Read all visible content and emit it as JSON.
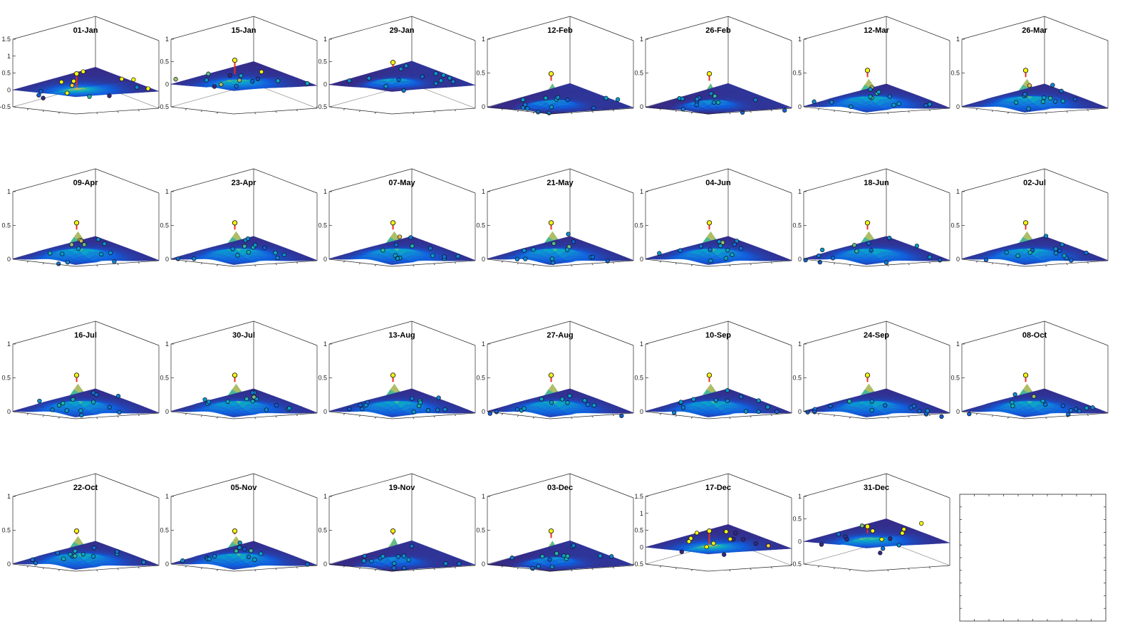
{
  "chart_data": {
    "type": "surface",
    "panels": [
      {
        "title": "01-Jan",
        "zlim": [
          -0.5,
          1.5
        ],
        "zticks": [
          "-0.5",
          "0",
          "0.5",
          "1",
          "1.5"
        ],
        "peak": 0.5,
        "amp": 0.1,
        "style": "dip"
      },
      {
        "title": "15-Jan",
        "zlim": [
          -0.5,
          1
        ],
        "zticks": [
          "-0.5",
          "0",
          "0.5",
          "1"
        ],
        "peak": 0.55,
        "amp": 0.25,
        "style": "dip"
      },
      {
        "title": "29-Jan",
        "zlim": [
          -0.5,
          1
        ],
        "zticks": [
          "-0.5",
          "0",
          "0.5",
          "1"
        ],
        "peak": 0.5,
        "amp": 0.4,
        "style": "spike"
      },
      {
        "title": "12-Feb",
        "zlim": [
          0,
          1
        ],
        "zticks": [
          "0",
          "0.5",
          "1"
        ],
        "peak": 0.5,
        "amp": 0.4,
        "style": "spike"
      },
      {
        "title": "26-Feb",
        "zlim": [
          0,
          1
        ],
        "zticks": [
          "0",
          "0.5",
          "1"
        ],
        "peak": 0.5,
        "amp": 0.4,
        "style": "spike"
      },
      {
        "title": "12-Mar",
        "zlim": [
          0,
          1
        ],
        "zticks": [
          "0",
          "0.5",
          "1"
        ],
        "peak": 0.55,
        "amp": 0.45,
        "style": "peak"
      },
      {
        "title": "26-Mar",
        "zlim": [
          0,
          1
        ],
        "zticks": [
          "0",
          "0.5",
          "1"
        ],
        "peak": 0.55,
        "amp": 0.45,
        "style": "peak"
      },
      {
        "title": "09-Apr",
        "zlim": [
          0,
          1
        ],
        "zticks": [
          "0",
          "0.5",
          "1"
        ],
        "peak": 0.55,
        "amp": 0.45,
        "style": "peak"
      },
      {
        "title": "23-Apr",
        "zlim": [
          0,
          1
        ],
        "zticks": [
          "0",
          "0.5",
          "1"
        ],
        "peak": 0.55,
        "amp": 0.45,
        "style": "peak"
      },
      {
        "title": "07-May",
        "zlim": [
          0,
          1
        ],
        "zticks": [
          "0",
          "0.5",
          "1"
        ],
        "peak": 0.55,
        "amp": 0.45,
        "style": "peak"
      },
      {
        "title": "21-May",
        "zlim": [
          0,
          1
        ],
        "zticks": [
          "0",
          "0.5",
          "1"
        ],
        "peak": 0.55,
        "amp": 0.45,
        "style": "peak"
      },
      {
        "title": "04-Jun",
        "zlim": [
          0,
          1
        ],
        "zticks": [
          "0",
          "0.5",
          "1"
        ],
        "peak": 0.55,
        "amp": 0.45,
        "style": "peak"
      },
      {
        "title": "18-Jun",
        "zlim": [
          0,
          1
        ],
        "zticks": [
          "0",
          "0.5",
          "1"
        ],
        "peak": 0.55,
        "amp": 0.45,
        "style": "peak"
      },
      {
        "title": "02-Jul",
        "zlim": [
          0,
          1
        ],
        "zticks": [
          "0",
          "0.5",
          "1"
        ],
        "peak": 0.55,
        "amp": 0.45,
        "style": "peak"
      },
      {
        "title": "16-Jul",
        "zlim": [
          0,
          1
        ],
        "zticks": [
          "0",
          "0.5",
          "1"
        ],
        "peak": 0.55,
        "amp": 0.45,
        "style": "peak"
      },
      {
        "title": "30-Jul",
        "zlim": [
          0,
          1
        ],
        "zticks": [
          "0",
          "0.5",
          "1"
        ],
        "peak": 0.55,
        "amp": 0.45,
        "style": "peak"
      },
      {
        "title": "13-Aug",
        "zlim": [
          0,
          1
        ],
        "zticks": [
          "0",
          "0.5",
          "1"
        ],
        "peak": 0.55,
        "amp": 0.45,
        "style": "peak"
      },
      {
        "title": "27-Aug",
        "zlim": [
          0,
          1
        ],
        "zticks": [
          "0",
          "0.5",
          "1"
        ],
        "peak": 0.55,
        "amp": 0.45,
        "style": "peak"
      },
      {
        "title": "10-Sep",
        "zlim": [
          0,
          1
        ],
        "zticks": [
          "0",
          "0.5",
          "1"
        ],
        "peak": 0.55,
        "amp": 0.45,
        "style": "peak"
      },
      {
        "title": "24-Sep",
        "zlim": [
          0,
          1
        ],
        "zticks": [
          "0",
          "0.5",
          "1"
        ],
        "peak": 0.55,
        "amp": 0.45,
        "style": "peak"
      },
      {
        "title": "08-Oct",
        "zlim": [
          0,
          1
        ],
        "zticks": [
          "0",
          "0.5",
          "1"
        ],
        "peak": 0.55,
        "amp": 0.45,
        "style": "peak"
      },
      {
        "title": "22-Oct",
        "zlim": [
          0,
          1
        ],
        "zticks": [
          "0",
          "0.5",
          "1"
        ],
        "peak": 0.5,
        "amp": 0.45,
        "style": "peak"
      },
      {
        "title": "05-Nov",
        "zlim": [
          0,
          1
        ],
        "zticks": [
          "0",
          "0.5",
          "1"
        ],
        "peak": 0.5,
        "amp": 0.45,
        "style": "peak"
      },
      {
        "title": "19-Nov",
        "zlim": [
          0,
          1
        ],
        "zticks": [
          "0",
          "0.5",
          "1"
        ],
        "peak": 0.5,
        "amp": 0.45,
        "style": "spike"
      },
      {
        "title": "03-Dec",
        "zlim": [
          0,
          1
        ],
        "zticks": [
          "0",
          "0.5",
          "1"
        ],
        "peak": 0.5,
        "amp": 0.4,
        "style": "spike"
      },
      {
        "title": "17-Dec",
        "zlim": [
          -0.5,
          1.5
        ],
        "zticks": [
          "-0.5",
          "0",
          "0.5",
          "1",
          "1.5"
        ],
        "peak": 0.5,
        "amp": 0.12,
        "style": "dip"
      },
      {
        "title": "31-Dec",
        "zlim": [
          -0.5,
          1
        ],
        "zticks": [
          "-0.5",
          "0",
          "0.5",
          "1"
        ],
        "peak": 0.35,
        "amp": 0.2,
        "style": "dip"
      }
    ],
    "empty_panel": true
  }
}
